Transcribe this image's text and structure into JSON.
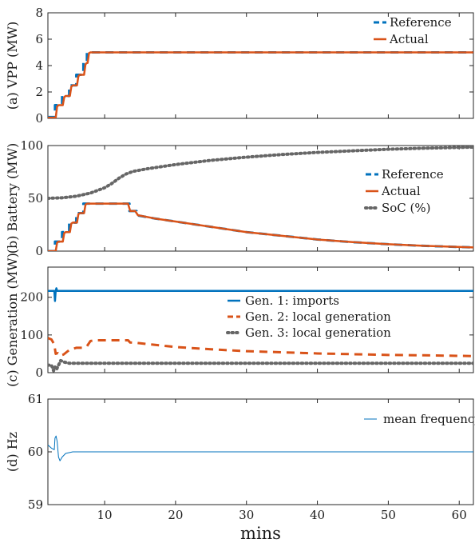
{
  "chart_data": [
    {
      "type": "line",
      "ylabel": "(a) VPP (MW)",
      "xlim": [
        2,
        62
      ],
      "ylim": [
        0,
        8
      ],
      "yticks": [
        "0",
        "2",
        "4",
        "6",
        "8"
      ],
      "legend": "top-right",
      "series": [
        {
          "name": "Reference",
          "color": "#0072BD",
          "style": "dashed",
          "points": [
            [
              2,
              0.1
            ],
            [
              3,
              0.1
            ],
            [
              3,
              1.0
            ],
            [
              4,
              1.0
            ],
            [
              4,
              1.7
            ],
            [
              5,
              1.7
            ],
            [
              5,
              2.5
            ],
            [
              6,
              2.5
            ],
            [
              6,
              3.3
            ],
            [
              7,
              3.3
            ],
            [
              7,
              4.2
            ],
            [
              7.5,
              4.2
            ],
            [
              7.5,
              5.0
            ],
            [
              62,
              5.0
            ]
          ]
        },
        {
          "name": "Actual",
          "color": "#D95319",
          "style": "solid",
          "points": [
            [
              2,
              0.05
            ],
            [
              3.1,
              0.05
            ],
            [
              3.3,
              0.9
            ],
            [
              3.5,
              1.0
            ],
            [
              4.1,
              1.0
            ],
            [
              4.3,
              1.6
            ],
            [
              4.5,
              1.7
            ],
            [
              5.1,
              1.7
            ],
            [
              5.3,
              2.4
            ],
            [
              5.5,
              2.5
            ],
            [
              6.1,
              2.5
            ],
            [
              6.3,
              3.2
            ],
            [
              6.5,
              3.3
            ],
            [
              7.1,
              3.3
            ],
            [
              7.3,
              4.1
            ],
            [
              7.5,
              4.2
            ],
            [
              7.6,
              4.2
            ],
            [
              7.8,
              4.95
            ],
            [
              8,
              5.0
            ],
            [
              62,
              5.0
            ]
          ]
        }
      ]
    },
    {
      "type": "line",
      "ylabel": "(b) Battery (MW)",
      "xlim": [
        2,
        62
      ],
      "ylim": [
        0,
        100
      ],
      "yticks": [
        "0",
        "50",
        "100"
      ],
      "legend": "right",
      "series": [
        {
          "name": "Reference",
          "color": "#0072BD",
          "style": "dashed",
          "points": [
            [
              2,
              0
            ],
            [
              3,
              0
            ],
            [
              3,
              9
            ],
            [
              4,
              9
            ],
            [
              4,
              18
            ],
            [
              5,
              18
            ],
            [
              5,
              27
            ],
            [
              6,
              27
            ],
            [
              6,
              36
            ],
            [
              7,
              36
            ],
            [
              7,
              45
            ],
            [
              13.5,
              45
            ],
            [
              13.5,
              38
            ],
            [
              14.5,
              38
            ],
            [
              14.5,
              34
            ],
            [
              17,
              31
            ],
            [
              20,
              28
            ],
            [
              25,
              23
            ],
            [
              30,
              18
            ],
            [
              35,
              14.5
            ],
            [
              40,
              11
            ],
            [
              45,
              8.5
            ],
            [
              50,
              6.5
            ],
            [
              55,
              5
            ],
            [
              62,
              3.5
            ]
          ]
        },
        {
          "name": "Actual",
          "color": "#D95319",
          "style": "solid",
          "points": [
            [
              2,
              0
            ],
            [
              3.1,
              0
            ],
            [
              3.3,
              8
            ],
            [
              3.5,
              9
            ],
            [
              4.1,
              9
            ],
            [
              4.3,
              17
            ],
            [
              4.5,
              18
            ],
            [
              5.1,
              18
            ],
            [
              5.3,
              26
            ],
            [
              5.5,
              27
            ],
            [
              6.1,
              27
            ],
            [
              6.3,
              35
            ],
            [
              6.5,
              36
            ],
            [
              7.1,
              36
            ],
            [
              7.3,
              44
            ],
            [
              7.5,
              45
            ],
            [
              13.3,
              45
            ],
            [
              13.6,
              38
            ],
            [
              14.3,
              38
            ],
            [
              14.7,
              34
            ],
            [
              17,
              31
            ],
            [
              20,
              28
            ],
            [
              25,
              23
            ],
            [
              30,
              18
            ],
            [
              35,
              14.5
            ],
            [
              40,
              11
            ],
            [
              45,
              8.5
            ],
            [
              50,
              6.5
            ],
            [
              55,
              5
            ],
            [
              62,
              3.5
            ]
          ]
        },
        {
          "name": "SoC (%)",
          "color": "#666666",
          "style": "dotted",
          "points": [
            [
              2,
              50
            ],
            [
              4,
              50.5
            ],
            [
              6,
              52
            ],
            [
              8,
              55
            ],
            [
              10,
              60
            ],
            [
              11,
              64
            ],
            [
              12,
              69
            ],
            [
              13,
              73
            ],
            [
              14,
              75.5
            ],
            [
              16,
              78
            ],
            [
              20,
              82
            ],
            [
              25,
              86
            ],
            [
              30,
              89
            ],
            [
              35,
              91.5
            ],
            [
              40,
              93.5
            ],
            [
              45,
              95
            ],
            [
              50,
              96.5
            ],
            [
              55,
              97.5
            ],
            [
              62,
              98.5
            ]
          ]
        }
      ]
    },
    {
      "type": "line",
      "ylabel": "(c) Generation (MW)",
      "xlim": [
        2,
        62
      ],
      "ylim": [
        0,
        280
      ],
      "yticks": [
        "0",
        "100",
        "200"
      ],
      "legend": "center",
      "series": [
        {
          "name": "Gen. 1: imports",
          "color": "#0072BD",
          "style": "solid",
          "points": [
            [
              2,
              217
            ],
            [
              2.9,
              217
            ],
            [
              3.0,
              190
            ],
            [
              3.1,
              217
            ],
            [
              3.2,
              224
            ],
            [
              3.3,
              217
            ],
            [
              62,
              217
            ]
          ]
        },
        {
          "name": "Gen. 2: local generation",
          "color": "#D95319",
          "style": "dashed",
          "points": [
            [
              2,
              92
            ],
            [
              2.5,
              88
            ],
            [
              2.9,
              75
            ],
            [
              3.1,
              50
            ],
            [
              3.4,
              52
            ],
            [
              3.7,
              45
            ],
            [
              4.2,
              48
            ],
            [
              5,
              60
            ],
            [
              6,
              66
            ],
            [
              7,
              66
            ],
            [
              7.5,
              70
            ],
            [
              8,
              84
            ],
            [
              9,
              86
            ],
            [
              13.3,
              86
            ],
            [
              13.6,
              80
            ],
            [
              14.5,
              79
            ],
            [
              17,
              74
            ],
            [
              20,
              68
            ],
            [
              25,
              62
            ],
            [
              30,
              57
            ],
            [
              35,
              54
            ],
            [
              40,
              51
            ],
            [
              45,
              49
            ],
            [
              50,
              47
            ],
            [
              55,
              46
            ],
            [
              62,
              44
            ]
          ]
        },
        {
          "name": "Gen. 3: local generation",
          "color": "#666666",
          "style": "dotted",
          "points": [
            [
              2,
              20
            ],
            [
              2.5,
              20
            ],
            [
              2.8,
              5
            ],
            [
              3.0,
              15
            ],
            [
              3.2,
              8
            ],
            [
              3.5,
              20
            ],
            [
              3.8,
              32
            ],
            [
              4.3,
              28
            ],
            [
              5,
              25
            ],
            [
              7,
              25
            ],
            [
              62,
              25
            ]
          ]
        }
      ]
    },
    {
      "type": "line",
      "ylabel": "(d) Hz",
      "xlabel": "mins",
      "xlim": [
        2,
        62
      ],
      "ylim": [
        59,
        61
      ],
      "yticks": [
        "59",
        "60",
        "61"
      ],
      "xticks": [
        10,
        20,
        30,
        40,
        50,
        60
      ],
      "xticklabels": [
        "10",
        "20",
        "30",
        "40",
        "50",
        "60"
      ],
      "legend": "top-right",
      "series": [
        {
          "name": "mean frequency",
          "color": "#0072BD",
          "style": "thin",
          "points": [
            [
              2,
              60.13
            ],
            [
              2.5,
              60.07
            ],
            [
              2.9,
              60.04
            ],
            [
              3.0,
              60.26
            ],
            [
              3.15,
              60.3
            ],
            [
              3.3,
              60.2
            ],
            [
              3.5,
              59.9
            ],
            [
              3.7,
              59.83
            ],
            [
              4.0,
              59.9
            ],
            [
              4.5,
              59.97
            ],
            [
              5.5,
              60.0
            ],
            [
              62,
              60.0
            ]
          ]
        }
      ]
    }
  ]
}
